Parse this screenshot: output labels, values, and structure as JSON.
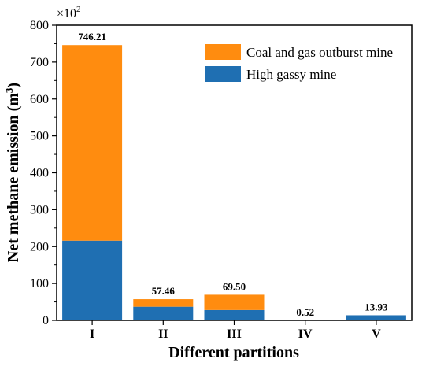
{
  "chart_data": {
    "type": "bar",
    "stacked": true,
    "categories": [
      "I",
      "II",
      "III",
      "IV",
      "V"
    ],
    "series": [
      {
        "name": "High gassy mine",
        "color": "#1f6fb2",
        "values": [
          216,
          37,
          28,
          0.52,
          13.93
        ]
      },
      {
        "name": "Coal and gas outburst mine",
        "color": "#ff8c0f",
        "values": [
          530.21,
          20.46,
          41.5,
          0,
          0
        ]
      }
    ],
    "data_labels": [
      "746.21",
      "57.46",
      "69.50",
      "0.52",
      "13.93"
    ],
    "xlabel": "Different partitions",
    "ylabel_main": "Net methane emission (m",
    "ylabel_sup": "3",
    "ylabel_end": ")",
    "axis_scale": {
      "base": "×10",
      "exp": "2"
    },
    "ylim": [
      0,
      800
    ],
    "yticks": [
      0,
      100,
      200,
      300,
      400,
      500,
      600,
      700,
      800
    ],
    "legend_position": "top-right",
    "legend_order": [
      "Coal and gas outburst mine",
      "High gassy mine"
    ]
  }
}
